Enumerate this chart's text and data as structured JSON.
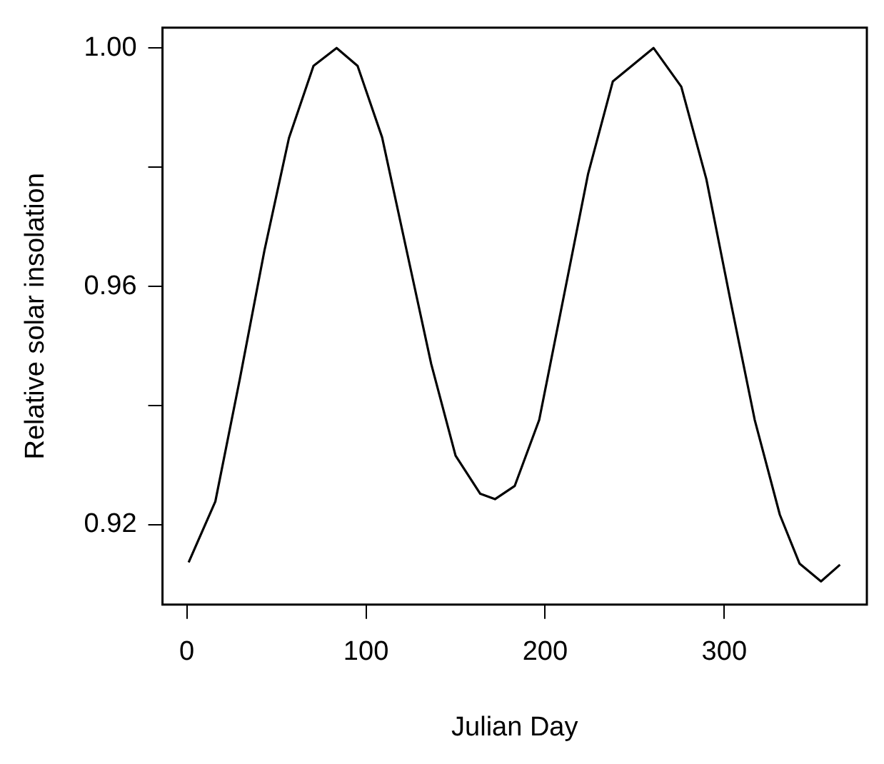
{
  "chart_data": {
    "type": "line",
    "xlabel": "Julian Day",
    "ylabel": "Relative solar insolation",
    "color": "#000000",
    "grid": false,
    "legend": false,
    "marker": "none",
    "line_style": "solid",
    "x": [
      1,
      15.9,
      29.6,
      43.3,
      57,
      70.7,
      83.6,
      95.3,
      109,
      122.7,
      136.4,
      150,
      163.8,
      172,
      183,
      196.7,
      210.4,
      224,
      237.8,
      260.5,
      276,
      290,
      303.6,
      317,
      331,
      342,
      354,
      364.6
    ],
    "values": [
      0.9137,
      0.9239,
      0.9445,
      0.966,
      0.9849,
      0.997,
      1.0,
      0.997,
      0.985,
      0.966,
      0.947,
      0.9316,
      0.9252,
      0.9243,
      0.9265,
      0.9376,
      0.9583,
      0.9789,
      0.9944,
      1.0,
      0.9935,
      0.978,
      0.9574,
      0.9376,
      0.9217,
      0.9135,
      0.9105,
      0.9133
    ],
    "xlim": [
      -13.6,
      379.6
    ],
    "xticks": [
      0,
      100,
      200,
      300
    ],
    "ylim": [
      0.9066,
      1.0034
    ],
    "yticks": [
      0.92,
      {
        "value": 0.94,
        "label": null
      },
      0.96,
      {
        "value": 0.98,
        "label": null
      },
      {
        "value": 1.0,
        "label": "1.00"
      }
    ]
  }
}
